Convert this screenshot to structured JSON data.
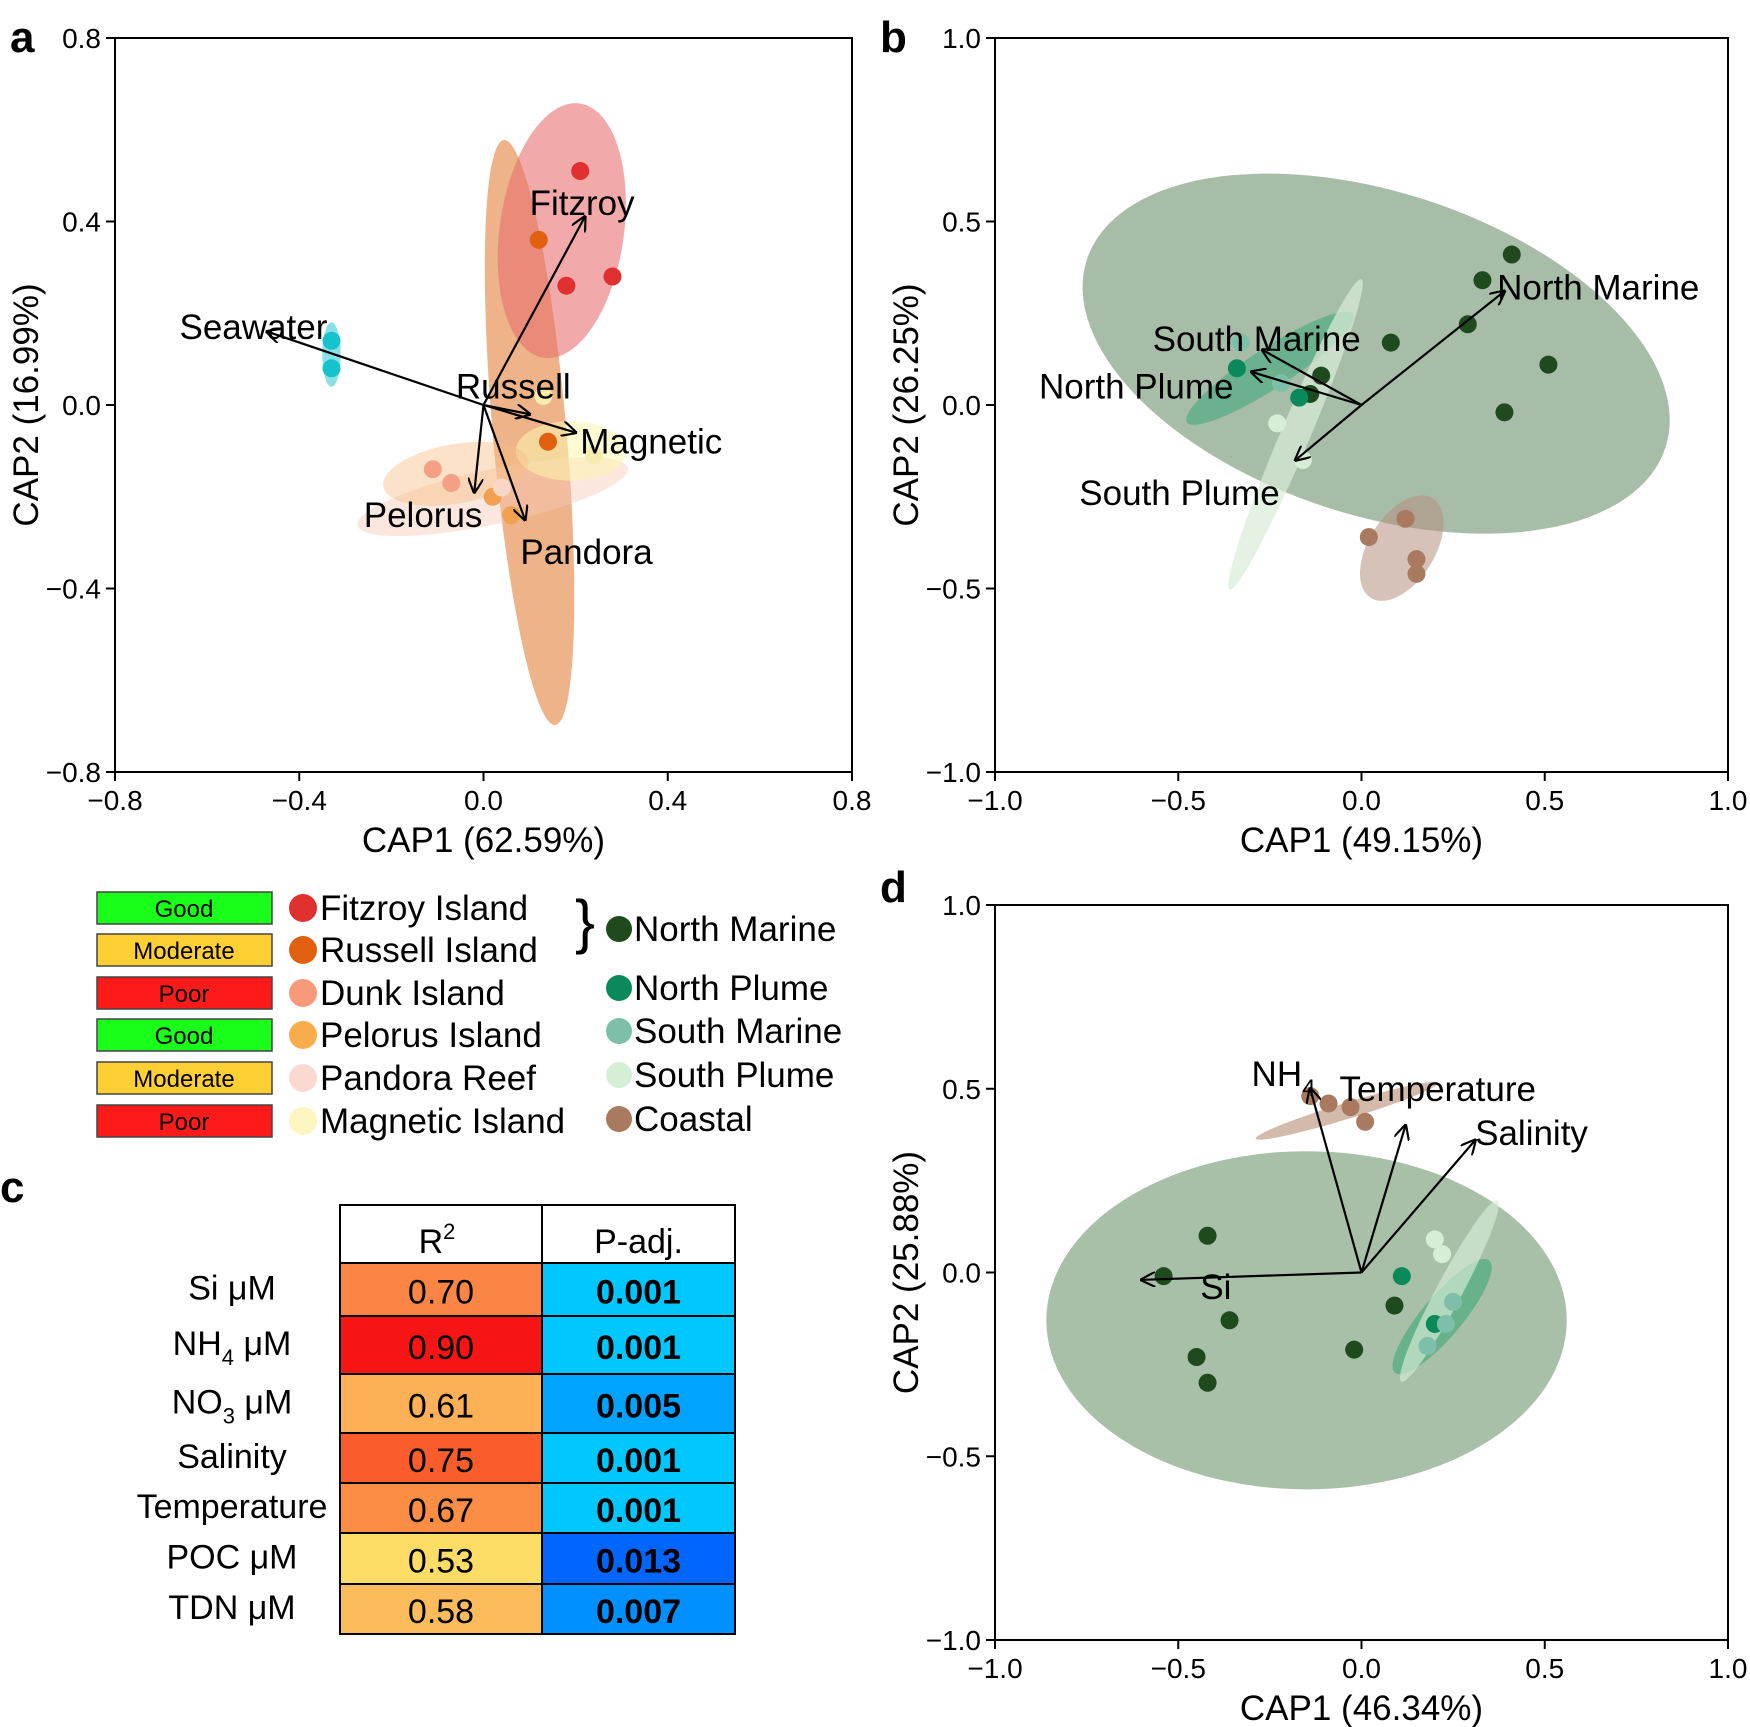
{
  "panel_labels": {
    "a": "a",
    "b": "b",
    "c": "c",
    "d": "d"
  },
  "legend": {
    "status_items": [
      {
        "label": "Good",
        "color": "#1aff1a"
      },
      {
        "label": "Moderate",
        "color": "#ffd033"
      },
      {
        "label": "Poor",
        "color": "#ff1a1a"
      },
      {
        "label": "Good",
        "color": "#1aff1a"
      },
      {
        "label": "Moderate",
        "color": "#ffd033"
      },
      {
        "label": "Poor",
        "color": "#ff1a1a"
      }
    ],
    "site_items": [
      {
        "label": "Fitzroy Island",
        "color": "#e03030"
      },
      {
        "label": "Russell Island",
        "color": "#e06010"
      },
      {
        "label": "Dunk Island",
        "color": "#f89a7a"
      },
      {
        "label": "Pelorus Island",
        "color": "#f8ac4c"
      },
      {
        "label": "Pandora Reef",
        "color": "#fadad0"
      },
      {
        "label": "Magnetic Island",
        "color": "#fdf6c0"
      }
    ],
    "brace": "}",
    "water_items": [
      {
        "label": "North Marine",
        "color": "#1e4a1e"
      },
      {
        "label": "North Plume",
        "color": "#0a8a5a"
      },
      {
        "label": "South Marine",
        "color": "#7dbfa8"
      },
      {
        "label": "South Plume",
        "color": "#d6eed6"
      },
      {
        "label": "Coastal",
        "color": "#a97a60"
      }
    ]
  },
  "table": {
    "headers": {
      "r2_base": "R",
      "r2_sup": "2",
      "padj": "P-adj."
    },
    "rows": [
      {
        "label": "Si μM",
        "sub": "",
        "label_tail": "",
        "r2": "0.70",
        "r2_color": "#fb8545",
        "p": "0.001",
        "p_color": "#00c8ff"
      },
      {
        "label": "NH",
        "sub": "4",
        "label_tail": " μM",
        "r2": "0.90",
        "r2_color": "#f71414",
        "p": "0.001",
        "p_color": "#00c8ff"
      },
      {
        "label": "NO",
        "sub": "3",
        "label_tail": " μM",
        "r2": "0.61",
        "r2_color": "#fdb055",
        "p": "0.005",
        "p_color": "#00a4ff"
      },
      {
        "label": "Salinity",
        "sub": "",
        "label_tail": "",
        "r2": "0.75",
        "r2_color": "#fb5c2c",
        "p": "0.001",
        "p_color": "#00c8ff"
      },
      {
        "label": "Temperature",
        "sub": "",
        "label_tail": "",
        "r2": "0.67",
        "r2_color": "#fb8d45",
        "p": "0.001",
        "p_color": "#00c8ff"
      },
      {
        "label": "POC μM",
        "sub": "",
        "label_tail": "",
        "r2": "0.53",
        "r2_color": "#fedd66",
        "p": "0.013",
        "p_color": "#0066ff"
      },
      {
        "label": "TDN μM",
        "sub": "",
        "label_tail": "",
        "r2": "0.58",
        "r2_color": "#fdbc5c",
        "p": "0.007",
        "p_color": "#0090ff"
      }
    ]
  },
  "chart_data": [
    {
      "id": "a",
      "type": "scatter",
      "xlabel": "CAP1 (62.59%)",
      "ylabel": "CAP2 (16.99%)",
      "xlim": [
        -0.8,
        0.8
      ],
      "ylim": [
        -0.8,
        0.8
      ],
      "xticks": [
        -0.8,
        -0.4,
        0.0,
        0.4,
        0.8
      ],
      "yticks": [
        -0.8,
        -0.4,
        0.0,
        0.4,
        0.8
      ],
      "xtick_labels": [
        "−0.8",
        "−0.4",
        "0.0",
        "0.4",
        "0.8"
      ],
      "ytick_labels": [
        "−0.8",
        "−0.4",
        "0.0",
        "0.4",
        "0.8"
      ],
      "ellipses": [
        {
          "cx": 0.1,
          "cy": -0.06,
          "rx": 0.08,
          "ry": 0.64,
          "angle_deg": -5,
          "color": "#e8955a",
          "opacity": 0.72
        },
        {
          "cx": 0.17,
          "cy": 0.38,
          "rx": 0.135,
          "ry": 0.28,
          "angle_deg": 8,
          "color": "#e87070",
          "opacity": 0.6
        },
        {
          "cx": 0.02,
          "cy": -0.2,
          "rx": 0.3,
          "ry": 0.06,
          "angle_deg": -12,
          "color": "#f9c9b8",
          "opacity": 0.45
        },
        {
          "cx": 0.19,
          "cy": -0.1,
          "rx": 0.12,
          "ry": 0.065,
          "angle_deg": 0,
          "color": "#fbf5b0",
          "opacity": 0.55
        },
        {
          "cx": -0.06,
          "cy": -0.15,
          "rx": 0.16,
          "ry": 0.065,
          "angle_deg": -10,
          "color": "#f6bf86",
          "opacity": 0.45
        },
        {
          "cx": -0.33,
          "cy": 0.11,
          "rx": 0.02,
          "ry": 0.07,
          "angle_deg": 0,
          "color": "#14c3cc",
          "opacity": 0.5
        }
      ],
      "series": [
        {
          "name": "Fitzroy Island",
          "color": "#e03030",
          "points": [
            [
              0.21,
              0.51
            ],
            [
              0.28,
              0.28
            ],
            [
              0.18,
              0.26
            ]
          ]
        },
        {
          "name": "Russell Island",
          "color": "#e06010",
          "points": [
            [
              0.12,
              0.36
            ],
            [
              0.14,
              -0.08
            ]
          ]
        },
        {
          "name": "Dunk Island",
          "color": "#f4a084",
          "points": [
            [
              -0.11,
              -0.14
            ],
            [
              -0.07,
              -0.17
            ]
          ]
        },
        {
          "name": "Pelorus Island",
          "color": "#f1a050",
          "points": [
            [
              0.02,
              -0.2
            ],
            [
              0.06,
              -0.24
            ]
          ]
        },
        {
          "name": "Pandora Reef",
          "color": "#f8d6c8",
          "points": [
            [
              0.04,
              -0.18
            ]
          ]
        },
        {
          "name": "Magnetic Island",
          "color": "#f7ecb0",
          "points": [
            [
              0.24,
              -0.11
            ],
            [
              0.13,
              0.02
            ]
          ]
        },
        {
          "name": "Seawater",
          "color": "#14c3cc",
          "points": [
            [
              -0.33,
              0.14
            ],
            [
              -0.33,
              0.08
            ]
          ]
        }
      ],
      "vectors": [
        {
          "label": "Fitzroy",
          "x": 0.22,
          "y": 0.41,
          "lx": 0.1,
          "ly": 0.44
        },
        {
          "label": "Seawater",
          "x": -0.47,
          "y": 0.16,
          "lx": -0.66,
          "ly": 0.17
        },
        {
          "label": "Russell",
          "x": 0.1,
          "y": -0.02,
          "lx": -0.06,
          "ly": 0.04
        },
        {
          "label": "Magnetic",
          "x": 0.2,
          "y": -0.06,
          "lx": 0.21,
          "ly": -0.08
        },
        {
          "label": "Pelorus",
          "x": -0.02,
          "y": -0.19,
          "lx": -0.26,
          "ly": -0.24
        },
        {
          "label": "Pandora",
          "x": 0.09,
          "y": -0.25,
          "lx": 0.08,
          "ly": -0.32
        }
      ]
    },
    {
      "id": "b",
      "type": "scatter",
      "xlabel": "CAP1 (49.15%)",
      "ylabel": "CAP2 (26.25%)",
      "xlim": [
        -1.0,
        1.0
      ],
      "ylim": [
        -1.0,
        1.0
      ],
      "xticks": [
        -1.0,
        -0.5,
        0.0,
        0.5,
        1.0
      ],
      "yticks": [
        -1.0,
        -0.5,
        0.0,
        0.5,
        1.0
      ],
      "xtick_labels": [
        "−1.0",
        "−0.5",
        "0.0",
        "0.5",
        "1.0"
      ],
      "ytick_labels": [
        "−1.0",
        "−0.5",
        "0.0",
        "0.5",
        "1.0"
      ],
      "ellipses": [
        {
          "cx": 0.04,
          "cy": 0.14,
          "rx": 0.83,
          "ry": 0.44,
          "angle_deg": 18,
          "color": "#5e875e",
          "opacity": 0.55
        },
        {
          "cx": -0.25,
          "cy": 0.1,
          "rx": 0.27,
          "ry": 0.055,
          "angle_deg": -33,
          "color": "#3ca878",
          "opacity": 0.55
        },
        {
          "cx": -0.18,
          "cy": -0.08,
          "rx": 0.46,
          "ry": 0.04,
          "angle_deg": -67,
          "color": "#d8ecd8",
          "opacity": 0.7
        },
        {
          "cx": 0.11,
          "cy": -0.39,
          "rx": 0.16,
          "ry": 0.09,
          "angle_deg": -58,
          "color": "#b49080",
          "opacity": 0.55
        }
      ],
      "series": [
        {
          "name": "North Marine",
          "color": "#1e4a1e",
          "points": [
            [
              0.41,
              0.41
            ],
            [
              0.33,
              0.34
            ],
            [
              0.29,
              0.22
            ],
            [
              0.51,
              0.11
            ],
            [
              0.39,
              -0.02
            ],
            [
              0.08,
              0.17
            ],
            [
              -0.11,
              0.08
            ],
            [
              -0.14,
              0.03
            ]
          ]
        },
        {
          "name": "North Plume",
          "color": "#0a8a5a",
          "points": [
            [
              -0.17,
              0.02
            ],
            [
              -0.34,
              0.1
            ]
          ]
        },
        {
          "name": "South Marine",
          "color": "#7dbfa8",
          "points": [
            [
              -0.33,
              0.17
            ],
            [
              -0.22,
              0.06
            ]
          ]
        },
        {
          "name": "South Plume",
          "color": "#d6eed6",
          "points": [
            [
              -0.23,
              -0.05
            ],
            [
              -0.16,
              -0.15
            ]
          ]
        },
        {
          "name": "Coastal",
          "color": "#a97a60",
          "points": [
            [
              0.12,
              -0.31
            ],
            [
              0.15,
              -0.42
            ],
            [
              0.15,
              -0.46
            ],
            [
              0.02,
              -0.36
            ]
          ]
        }
      ],
      "vectors": [
        {
          "label": "North Marine",
          "x": 0.39,
          "y": 0.31,
          "lx": 0.37,
          "ly": 0.32
        },
        {
          "label": "South Marine",
          "x": -0.27,
          "y": 0.15,
          "lx": -0.57,
          "ly": 0.18
        },
        {
          "label": "North Plume",
          "x": -0.3,
          "y": 0.09,
          "lx": -0.88,
          "ly": 0.05
        },
        {
          "label": "South Plume",
          "x": -0.18,
          "y": -0.15,
          "lx": -0.77,
          "ly": -0.24
        }
      ]
    },
    {
      "id": "d",
      "type": "scatter",
      "xlabel": "CAP1 (46.34%)",
      "ylabel": "CAP2 (25.88%)",
      "xlim": [
        -1.0,
        1.0
      ],
      "ylim": [
        -1.0,
        1.0
      ],
      "xticks": [
        -1.0,
        -0.5,
        0.0,
        0.5,
        1.0
      ],
      "yticks": [
        -1.0,
        -0.5,
        0.0,
        0.5,
        1.0
      ],
      "xtick_labels": [
        "−1.0",
        "−0.5",
        "0.0",
        "0.5",
        "1.0"
      ],
      "ytick_labels": [
        "−1.0",
        "−0.5",
        "0.0",
        "0.5",
        "1.0"
      ],
      "ellipses": [
        {
          "cx": -0.15,
          "cy": -0.13,
          "rx": 0.71,
          "ry": 0.46,
          "angle_deg": 0,
          "color": "#6e956e",
          "opacity": 0.6
        },
        {
          "cx": 0.22,
          "cy": -0.12,
          "rx": 0.2,
          "ry": 0.055,
          "angle_deg": -50,
          "color": "#3ca878",
          "opacity": 0.6
        },
        {
          "cx": 0.24,
          "cy": -0.05,
          "rx": 0.28,
          "ry": 0.035,
          "angle_deg": -62,
          "color": "#d8ecd8",
          "opacity": 0.65
        },
        {
          "cx": -0.04,
          "cy": 0.44,
          "rx": 0.26,
          "ry": 0.022,
          "angle_deg": -17,
          "color": "#c09c88",
          "opacity": 0.7
        }
      ],
      "series": [
        {
          "name": "North Marine",
          "color": "#1e4a1e",
          "points": [
            [
              -0.42,
              0.1
            ],
            [
              -0.54,
              -0.01
            ],
            [
              -0.36,
              -0.13
            ],
            [
              -0.45,
              -0.23
            ],
            [
              -0.42,
              -0.3
            ],
            [
              0.09,
              -0.09
            ],
            [
              -0.02,
              -0.21
            ]
          ]
        },
        {
          "name": "North Plume",
          "color": "#0a8a5a",
          "points": [
            [
              0.11,
              -0.01
            ],
            [
              0.2,
              -0.14
            ]
          ]
        },
        {
          "name": "South Marine",
          "color": "#7dbfa8",
          "points": [
            [
              0.18,
              -0.2
            ],
            [
              0.23,
              -0.14
            ],
            [
              0.25,
              -0.08
            ]
          ]
        },
        {
          "name": "South Plume",
          "color": "#d6eed6",
          "points": [
            [
              0.22,
              0.05
            ],
            [
              0.2,
              0.09
            ]
          ]
        },
        {
          "name": "Coastal",
          "color": "#a97a60",
          "points": [
            [
              -0.14,
              0.48
            ],
            [
              -0.09,
              0.46
            ],
            [
              -0.03,
              0.45
            ],
            [
              0.01,
              0.41
            ]
          ]
        }
      ],
      "vectors": [
        {
          "label": "Si",
          "x": -0.6,
          "y": -0.02,
          "lx": -0.44,
          "ly": -0.04,
          "sub": ""
        },
        {
          "label": "NH",
          "x": -0.14,
          "y": 0.5,
          "lx": -0.3,
          "ly": 0.54,
          "sub": "4"
        },
        {
          "label": "Temperature",
          "x": 0.12,
          "y": 0.4,
          "lx": -0.06,
          "ly": 0.5,
          "sub": ""
        },
        {
          "label": "Salinity",
          "x": 0.31,
          "y": 0.36,
          "lx": 0.31,
          "ly": 0.38,
          "sub": ""
        }
      ]
    }
  ]
}
